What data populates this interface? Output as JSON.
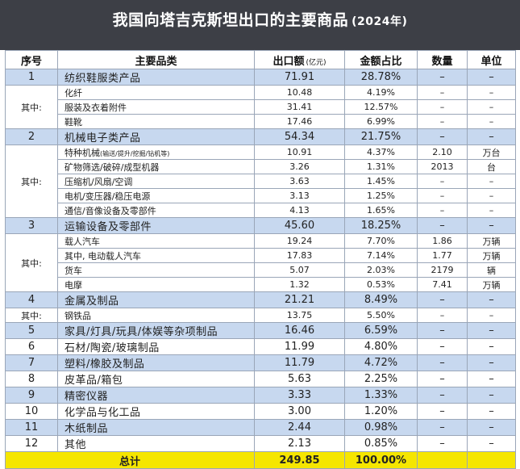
{
  "title": "我国向塔吉克斯坦出口的主要商品",
  "title_year": "(2024年)",
  "headers": {
    "seq": "序号",
    "name": "主要品类",
    "export": "出口额",
    "export_unit": "(亿元)",
    "share": "金额占比",
    "qty": "数量",
    "unit": "单位"
  },
  "qizhong": "其中:",
  "rows": [
    {
      "type": "main",
      "seq": "1",
      "name": "纺织鞋服类产品",
      "value": "71.91",
      "share": "28.78%",
      "qty": "–",
      "unit": "–"
    },
    {
      "type": "sub",
      "name": "化纤",
      "value": "10.48",
      "share": "4.19%",
      "qty": "–",
      "unit": "–"
    },
    {
      "type": "sub",
      "name": "服装及衣着附件",
      "value": "31.41",
      "share": "12.57%",
      "qty": "–",
      "unit": "–"
    },
    {
      "type": "sub",
      "name": "鞋靴",
      "value": "17.46",
      "share": "6.99%",
      "qty": "–",
      "unit": "–"
    },
    {
      "type": "main",
      "seq": "2",
      "name": "机械电子类产品",
      "value": "54.34",
      "share": "21.75%",
      "qty": "–",
      "unit": "–"
    },
    {
      "type": "sub",
      "name": "特种机械",
      "name_note": "(输送/提升/挖掘/钻机等)",
      "value": "10.91",
      "share": "4.37%",
      "qty": "2.10",
      "unit": "万台"
    },
    {
      "type": "sub",
      "name": "矿物筛选/破碎/成型机器",
      "value": "3.26",
      "share": "1.31%",
      "qty": "2013",
      "unit": "台"
    },
    {
      "type": "sub",
      "name": "压缩机/风扇/空调",
      "value": "3.63",
      "share": "1.45%",
      "qty": "–",
      "unit": "–"
    },
    {
      "type": "sub",
      "name": "电机/变压器/稳压电源",
      "value": "3.13",
      "share": "1.25%",
      "qty": "–",
      "unit": "–"
    },
    {
      "type": "sub",
      "name": "通信/音像设备及零部件",
      "value": "4.13",
      "share": "1.65%",
      "qty": "–",
      "unit": "–"
    },
    {
      "type": "main",
      "seq": "3",
      "name": "运输设备及零部件",
      "value": "45.60",
      "share": "18.25%",
      "qty": "–",
      "unit": "–"
    },
    {
      "type": "sub",
      "name": "载人汽车",
      "value": "19.24",
      "share": "7.70%",
      "qty": "1.86",
      "unit": "万辆"
    },
    {
      "type": "sub",
      "name": "其中, 电动载人汽车",
      "value": "17.83",
      "share": "7.14%",
      "qty": "1.77",
      "unit": "万辆"
    },
    {
      "type": "sub",
      "name": "货车",
      "value": "5.07",
      "share": "2.03%",
      "qty": "2179",
      "unit": "辆"
    },
    {
      "type": "sub",
      "name": "电摩",
      "value": "1.32",
      "share": "0.53%",
      "qty": "7.41",
      "unit": "万辆"
    },
    {
      "type": "main",
      "seq": "4",
      "name": "金属及制品",
      "value": "21.21",
      "share": "8.49%",
      "qty": "–",
      "unit": "–"
    },
    {
      "type": "sub",
      "name": "钢铁品",
      "value": "13.75",
      "share": "5.50%",
      "qty": "–",
      "unit": "–"
    },
    {
      "type": "main",
      "seq": "5",
      "name": "家具/灯具/玩具/体娱等杂项制品",
      "value": "16.46",
      "share": "6.59%",
      "qty": "–",
      "unit": "–"
    },
    {
      "type": "main",
      "seq": "6",
      "name": "石材/陶瓷/玻璃制品",
      "value": "11.99",
      "share": "4.80%",
      "qty": "–",
      "unit": "–"
    },
    {
      "type": "main",
      "seq": "7",
      "name": "塑料/橡胶及制品",
      "value": "11.79",
      "share": "4.72%",
      "qty": "–",
      "unit": "–"
    },
    {
      "type": "main",
      "seq": "8",
      "name": "皮革品/箱包",
      "value": "5.63",
      "share": "2.25%",
      "qty": "–",
      "unit": "–"
    },
    {
      "type": "main",
      "seq": "9",
      "name": "精密仪器",
      "value": "3.33",
      "share": "1.33%",
      "qty": "–",
      "unit": "–"
    },
    {
      "type": "main",
      "seq": "10",
      "name": "化学品与化工品",
      "value": "3.00",
      "share": "1.20%",
      "qty": "–",
      "unit": "–"
    },
    {
      "type": "main",
      "seq": "11",
      "name": "木纸制品",
      "value": "2.44",
      "share": "0.98%",
      "qty": "–",
      "unit": "–"
    },
    {
      "type": "main",
      "seq": "12",
      "name": "其他",
      "value": "2.13",
      "share": "0.85%",
      "qty": "–",
      "unit": "–"
    }
  ],
  "total": {
    "label": "总计",
    "value": "249.85",
    "share": "100.00%"
  },
  "colors": {
    "header_bg": "#3d3f46",
    "main_row": "#c7d8ef",
    "total_row": "#f5e600"
  }
}
